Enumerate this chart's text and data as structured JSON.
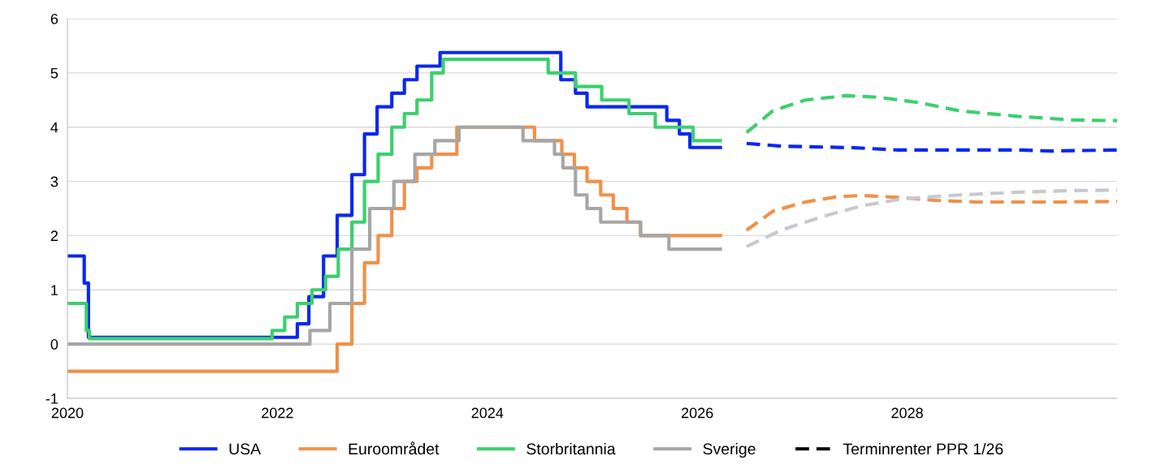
{
  "chart_data": {
    "type": "step",
    "xlim": [
      2020,
      2030
    ],
    "xticks": [
      2020,
      2022,
      2024,
      2026,
      2028
    ],
    "ylim": [
      -1,
      6
    ],
    "yticks": [
      -1,
      0,
      1,
      2,
      3,
      4,
      5,
      6
    ],
    "grid": "y",
    "legend": "bottom",
    "marker": "none",
    "series": [
      {
        "name": "USA",
        "color": "#0a28f0",
        "line_style": "solid",
        "x": [
          2020.0,
          2020.16,
          2020.2,
          2022.19,
          2022.3,
          2022.44,
          2022.57,
          2022.71,
          2022.83,
          2022.95,
          2023.09,
          2023.21,
          2023.33,
          2023.55,
          2024.7,
          2024.84,
          2024.95,
          2025.71,
          2025.83,
          2025.93,
          2026.22
        ],
        "values": [
          1.625,
          1.125,
          0.125,
          0.375,
          0.875,
          1.625,
          2.375,
          3.125,
          3.875,
          4.375,
          4.625,
          4.875,
          5.125,
          5.375,
          4.875,
          4.625,
          4.375,
          4.125,
          3.875,
          3.625,
          3.625
        ]
      },
      {
        "name": "Euroområdet",
        "color": "#f0914a",
        "line_style": "solid",
        "x": [
          2020.0,
          2022.57,
          2022.71,
          2022.83,
          2022.96,
          2023.09,
          2023.21,
          2023.33,
          2023.47,
          2023.71,
          2024.45,
          2024.71,
          2024.83,
          2024.95,
          2025.08,
          2025.2,
          2025.33,
          2025.46,
          2026.22
        ],
        "values": [
          -0.5,
          0.0,
          0.75,
          1.5,
          2.0,
          2.5,
          3.0,
          3.25,
          3.5,
          4.0,
          3.75,
          3.5,
          3.25,
          3.0,
          2.75,
          2.5,
          2.25,
          2.0,
          2.0
        ]
      },
      {
        "name": "Storbritannia",
        "color": "#3ccf6e",
        "line_style": "solid",
        "x": [
          2020.0,
          2020.18,
          2020.21,
          2021.95,
          2022.07,
          2022.19,
          2022.33,
          2022.46,
          2022.58,
          2022.71,
          2022.83,
          2022.96,
          2023.09,
          2023.21,
          2023.33,
          2023.47,
          2023.58,
          2024.58,
          2024.84,
          2025.09,
          2025.35,
          2025.6,
          2025.96,
          2026.22
        ],
        "values": [
          0.75,
          0.25,
          0.1,
          0.25,
          0.5,
          0.75,
          1.0,
          1.25,
          1.75,
          2.25,
          3.0,
          3.5,
          4.0,
          4.25,
          4.5,
          5.0,
          5.25,
          5.0,
          4.75,
          4.5,
          4.25,
          4.0,
          3.75,
          3.75
        ]
      },
      {
        "name": "Sverige",
        "color": "#a6a6a6",
        "line_style": "solid",
        "x": [
          2020.0,
          2022.31,
          2022.5,
          2022.71,
          2022.88,
          2023.11,
          2023.31,
          2023.5,
          2023.73,
          2024.34,
          2024.64,
          2024.72,
          2024.84,
          2024.95,
          2025.08,
          2025.46,
          2025.73,
          2026.22
        ],
        "values": [
          0.0,
          0.25,
          0.75,
          1.75,
          2.5,
          3.0,
          3.5,
          3.75,
          4.0,
          3.75,
          3.5,
          3.25,
          2.75,
          2.5,
          2.25,
          2.0,
          1.75,
          1.75
        ]
      },
      {
        "type": "line",
        "color": "#3ccf6e",
        "line_style": "dashed",
        "x": [
          2026.47,
          2026.72,
          2027.03,
          2027.42,
          2027.73,
          2028.12,
          2028.5,
          2029.05,
          2029.59,
          2030.0
        ],
        "values": [
          3.9,
          4.3,
          4.5,
          4.58,
          4.55,
          4.45,
          4.3,
          4.2,
          4.13,
          4.12
        ]
      },
      {
        "type": "line",
        "color": "#0a28f0",
        "line_style": "dashed",
        "x": [
          2026.47,
          2026.8,
          2027.5,
          2027.9,
          2029.05,
          2029.36,
          2030.0
        ],
        "values": [
          3.7,
          3.65,
          3.62,
          3.58,
          3.58,
          3.56,
          3.58
        ]
      },
      {
        "type": "line",
        "color": "#f0914a",
        "line_style": "dashed",
        "x": [
          2026.47,
          2026.72,
          2027.03,
          2027.34,
          2027.57,
          2027.96,
          2028.27,
          2028.66,
          2029.43,
          2030.0
        ],
        "values": [
          2.1,
          2.45,
          2.62,
          2.72,
          2.74,
          2.7,
          2.65,
          2.62,
          2.62,
          2.63
        ]
      },
      {
        "type": "line",
        "color": "#c8c8d2",
        "line_style": "dashed",
        "x": [
          2026.47,
          2026.8,
          2027.19,
          2027.57,
          2027.96,
          2028.5,
          2029.05,
          2029.59,
          2030.0
        ],
        "values": [
          1.8,
          2.1,
          2.35,
          2.55,
          2.68,
          2.75,
          2.8,
          2.83,
          2.84
        ]
      },
      {
        "type": "line",
        "name": "Terminrenter PPR 1/26",
        "color": "#000000",
        "line_style": "dashed"
      }
    ]
  }
}
